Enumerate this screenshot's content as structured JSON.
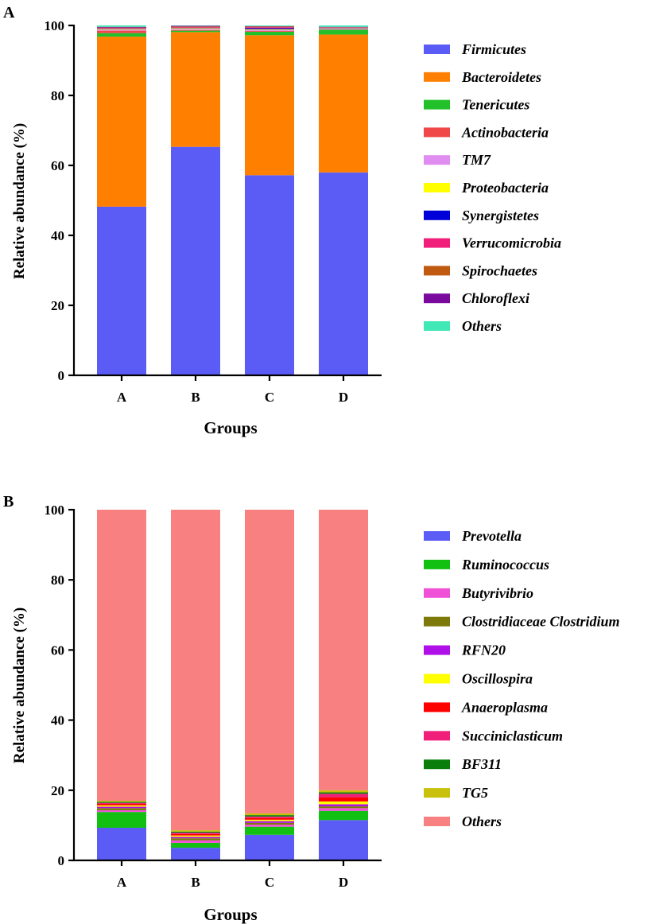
{
  "chart_data": [
    {
      "panel": "A",
      "type": "bar",
      "stacked": true,
      "xlabel": "Groups",
      "ylabel": "Relative abundance (%)",
      "ylim": [
        0,
        100
      ],
      "yticks": [
        "0",
        "20",
        "40",
        "60",
        "80",
        "100"
      ],
      "categories": [
        "A",
        "B",
        "C",
        "D"
      ],
      "series": [
        {
          "name": "Firmicutes",
          "color": "#5B5BF5",
          "values": [
            48.2,
            65.3,
            57.2,
            58.0
          ]
        },
        {
          "name": "Bacteroidetes",
          "color": "#FF8000",
          "values": [
            48.6,
            32.8,
            40.0,
            39.4
          ]
        },
        {
          "name": "Tenericutes",
          "color": "#22C02A",
          "values": [
            1.0,
            0.4,
            1.0,
            1.4
          ]
        },
        {
          "name": "Actinobacteria",
          "color": "#F04848",
          "values": [
            0.7,
            0.2,
            0.2,
            0.1
          ]
        },
        {
          "name": "TM7",
          "color": "#E08CF0",
          "values": [
            0.3,
            0.3,
            0.3,
            0.2
          ]
        },
        {
          "name": "Proteobacteria",
          "color": "#FFFF00",
          "values": [
            0.2,
            0.2,
            0.2,
            0.1
          ]
        },
        {
          "name": "Synergistetes",
          "color": "#0000D8",
          "values": [
            0.1,
            0.1,
            0.3,
            0.1
          ]
        },
        {
          "name": "Verrucomicrobia",
          "color": "#F0207A",
          "values": [
            0.2,
            0.2,
            0.3,
            0.1
          ]
        },
        {
          "name": "Spirochaetes",
          "color": "#C05A10",
          "values": [
            0.1,
            0.2,
            0.2,
            0.1
          ]
        },
        {
          "name": "Chloroflexi",
          "color": "#7A0A9E",
          "values": [
            0.2,
            0.2,
            0.1,
            0.1
          ]
        },
        {
          "name": "Others",
          "color": "#3FE8B5",
          "values": [
            0.4,
            0.1,
            0.2,
            0.4
          ]
        }
      ]
    },
    {
      "panel": "B",
      "type": "bar",
      "stacked": true,
      "xlabel": "Groups",
      "ylabel": "Relative abundance (%)",
      "ylim": [
        0,
        100
      ],
      "yticks": [
        "0",
        "20",
        "40",
        "60",
        "80",
        "100"
      ],
      "categories": [
        "A",
        "B",
        "C",
        "D"
      ],
      "series": [
        {
          "name": "Prevotella",
          "color": "#5B5BF5",
          "values": [
            9.3,
            3.6,
            7.3,
            11.5
          ]
        },
        {
          "name": "Ruminococcus",
          "color": "#11C011",
          "values": [
            4.5,
            1.4,
            2.3,
            2.6
          ]
        },
        {
          "name": "Butyrivibrio",
          "color": "#F050D8",
          "values": [
            0.5,
            0.7,
            0.6,
            0.8
          ]
        },
        {
          "name": "Clostridiaceae Clostridium",
          "color": "#7E7A0A",
          "values": [
            0.6,
            0.6,
            0.5,
            0.5
          ]
        },
        {
          "name": "RFN20",
          "color": "#B010E8",
          "values": [
            0.4,
            0.4,
            0.5,
            0.6
          ]
        },
        {
          "name": "Oscillospira",
          "color": "#FFFF00",
          "values": [
            0.4,
            0.4,
            0.4,
            0.8
          ]
        },
        {
          "name": "Anaeroplasma",
          "color": "#FF0000",
          "values": [
            0.4,
            0.4,
            0.5,
            1.2
          ]
        },
        {
          "name": "Succiniclasticum",
          "color": "#F0207A",
          "values": [
            0.3,
            0.4,
            0.4,
            1.0
          ]
        },
        {
          "name": "BF311",
          "color": "#0A7E0A",
          "values": [
            0.3,
            0.3,
            0.4,
            0.4
          ]
        },
        {
          "name": "TG5",
          "color": "#C8C00A",
          "values": [
            0.3,
            0.4,
            0.5,
            0.6
          ]
        },
        {
          "name": "Others",
          "color": "#F88080",
          "values": [
            83.0,
            91.4,
            86.6,
            80.0
          ]
        }
      ]
    }
  ]
}
